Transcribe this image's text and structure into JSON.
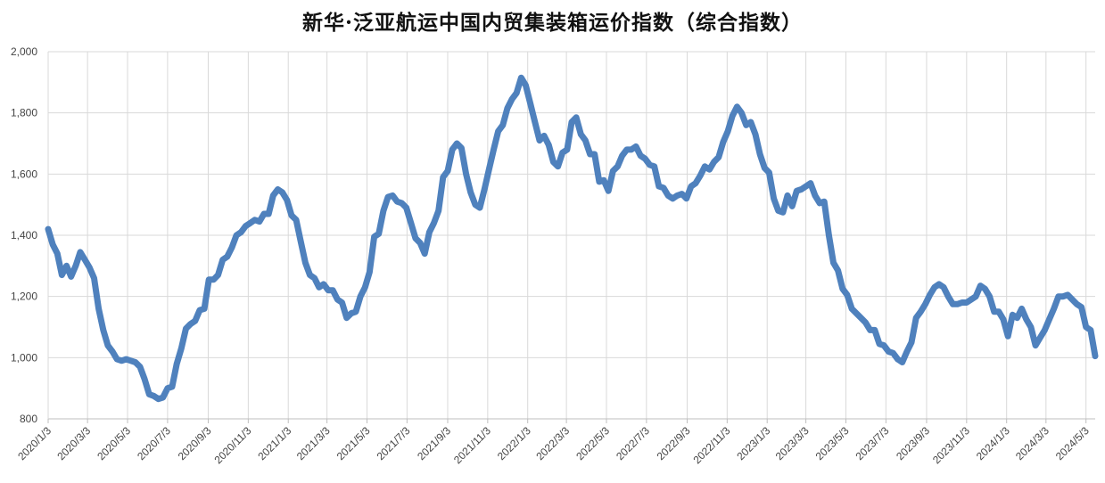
{
  "chart_data": {
    "type": "line",
    "title": "新华·泛亚航运中国内贸集装箱运价指数（综合指数）",
    "xlabel": "",
    "ylabel": "",
    "ylim": [
      800,
      2000
    ],
    "yticks": [
      800,
      1000,
      1200,
      1400,
      1600,
      1800,
      2000
    ],
    "ytick_labels": [
      "800",
      "1,000",
      "1,200",
      "1,400",
      "1,600",
      "1,800",
      "2,000"
    ],
    "xtick_labels": [
      "2020/1/3",
      "2020/3/3",
      "2020/5/3",
      "2020/7/3",
      "2020/9/3",
      "2020/11/3",
      "2021/1/3",
      "2021/3/3",
      "2021/5/3",
      "2021/7/3",
      "2021/9/3",
      "2021/11/3",
      "2022/1/3",
      "2022/3/3",
      "2022/5/3",
      "2022/7/3",
      "2022/9/3",
      "2022/11/3",
      "2023/1/3",
      "2023/3/3",
      "2023/5/3",
      "2023/7/3",
      "2023/9/3",
      "2023/11/3",
      "2024/1/3",
      "2024/3/3",
      "2024/5/3"
    ],
    "grid": true,
    "legend": "none",
    "line_color": "#4f81bd",
    "series": [
      {
        "x": [
          "2020/1/3",
          "2020/1/10",
          "2020/1/17",
          "2020/1/24",
          "2020/1/31",
          "2020/2/7",
          "2020/2/14",
          "2020/2/21",
          "2020/2/28",
          "2020/3/6",
          "2020/3/13",
          "2020/3/20",
          "2020/3/27",
          "2020/4/3",
          "2020/4/10",
          "2020/4/17",
          "2020/4/24",
          "2020/5/1",
          "2020/5/8",
          "2020/5/15",
          "2020/5/22",
          "2020/5/29",
          "2020/6/5",
          "2020/6/12",
          "2020/6/19",
          "2020/6/26",
          "2020/7/3",
          "2020/7/10",
          "2020/7/17",
          "2020/7/24",
          "2020/7/31",
          "2020/8/7",
          "2020/8/14",
          "2020/8/21",
          "2020/8/28",
          "2020/9/4",
          "2020/9/11",
          "2020/9/18",
          "2020/9/25",
          "2020/10/2",
          "2020/10/9",
          "2020/10/16",
          "2020/10/23",
          "2020/10/30",
          "2020/11/6",
          "2020/11/13",
          "2020/11/20",
          "2020/11/27",
          "2020/12/4",
          "2020/12/11",
          "2020/12/18",
          "2020/12/25",
          "2021/1/1",
          "2021/1/8",
          "2021/1/15",
          "2021/1/22",
          "2021/1/29",
          "2021/2/5",
          "2021/2/12",
          "2021/2/19",
          "2021/2/26",
          "2021/3/5",
          "2021/3/12",
          "2021/3/19",
          "2021/3/26",
          "2021/4/2",
          "2021/4/9",
          "2021/4/16",
          "2021/4/23",
          "2021/4/30",
          "2021/5/7",
          "2021/5/14",
          "2021/5/21",
          "2021/5/28",
          "2021/6/4",
          "2021/6/11",
          "2021/6/18",
          "2021/6/25",
          "2021/7/2",
          "2021/7/9",
          "2021/7/16",
          "2021/7/23",
          "2021/7/30",
          "2021/8/6",
          "2021/8/13",
          "2021/8/20",
          "2021/8/27",
          "2021/9/3",
          "2021/9/10",
          "2021/9/17",
          "2021/9/24",
          "2021/10/1",
          "2021/10/8",
          "2021/10/15",
          "2021/10/22",
          "2021/10/29",
          "2021/11/5",
          "2021/11/12",
          "2021/11/19",
          "2021/11/26",
          "2021/12/3",
          "2021/12/10",
          "2021/12/17",
          "2021/12/24",
          "2021/12/31",
          "2022/1/7",
          "2022/1/14",
          "2022/1/21",
          "2022/1/28",
          "2022/2/4",
          "2022/2/11",
          "2022/2/18",
          "2022/2/25",
          "2022/3/4",
          "2022/3/11",
          "2022/3/18",
          "2022/3/25",
          "2022/4/1",
          "2022/4/8",
          "2022/4/15",
          "2022/4/22",
          "2022/4/29",
          "2022/5/6",
          "2022/5/13",
          "2022/5/20",
          "2022/5/27",
          "2022/6/3",
          "2022/6/10",
          "2022/6/17",
          "2022/6/24",
          "2022/7/1",
          "2022/7/8",
          "2022/7/15",
          "2022/7/22",
          "2022/7/29",
          "2022/8/5",
          "2022/8/12",
          "2022/8/19",
          "2022/8/26",
          "2022/9/2",
          "2022/9/9",
          "2022/9/16",
          "2022/9/23",
          "2022/9/30",
          "2022/10/7",
          "2022/10/14",
          "2022/10/21",
          "2022/10/28",
          "2022/11/4",
          "2022/11/11",
          "2022/11/18",
          "2022/11/25",
          "2022/12/2",
          "2022/12/9",
          "2022/12/16",
          "2022/12/23",
          "2022/12/30",
          "2023/1/6",
          "2023/1/13",
          "2023/1/20",
          "2023/1/27",
          "2023/2/3",
          "2023/2/10",
          "2023/2/17",
          "2023/2/24",
          "2023/3/3",
          "2023/3/10",
          "2023/3/17",
          "2023/3/24",
          "2023/3/31",
          "2023/4/7",
          "2023/4/14",
          "2023/4/21",
          "2023/4/28",
          "2023/5/5",
          "2023/5/12",
          "2023/5/19",
          "2023/5/26",
          "2023/6/2",
          "2023/6/9",
          "2023/6/16",
          "2023/6/23",
          "2023/6/30",
          "2023/7/7",
          "2023/7/14",
          "2023/7/21",
          "2023/7/28",
          "2023/8/4",
          "2023/8/11",
          "2023/8/18",
          "2023/8/25",
          "2023/9/1",
          "2023/9/8",
          "2023/9/15",
          "2023/9/22",
          "2023/9/29",
          "2023/10/6",
          "2023/10/13",
          "2023/10/20",
          "2023/10/27",
          "2023/11/3",
          "2023/11/10",
          "2023/11/17",
          "2023/11/24",
          "2023/12/1",
          "2023/12/8",
          "2023/12/15",
          "2023/12/22",
          "2023/12/29",
          "2024/1/5",
          "2024/1/12",
          "2024/1/19",
          "2024/1/26",
          "2024/2/2",
          "2024/2/9",
          "2024/2/16",
          "2024/2/23",
          "2024/3/1",
          "2024/3/8",
          "2024/3/15",
          "2024/3/22",
          "2024/3/29",
          "2024/4/5",
          "2024/4/12",
          "2024/4/19",
          "2024/4/26",
          "2024/5/3",
          "2024/5/10",
          "2024/5/17"
        ],
        "values": [
          1420,
          1370,
          1340,
          1270,
          1300,
          1265,
          1300,
          1345,
          1320,
          1295,
          1260,
          1160,
          1090,
          1040,
          1020,
          995,
          990,
          995,
          990,
          985,
          970,
          930,
          880,
          875,
          865,
          870,
          900,
          905,
          980,
          1030,
          1095,
          1110,
          1120,
          1155,
          1160,
          1255,
          1255,
          1270,
          1320,
          1330,
          1360,
          1400,
          1410,
          1430,
          1440,
          1450,
          1445,
          1470,
          1470,
          1530,
          1550,
          1540,
          1515,
          1465,
          1450,
          1380,
          1310,
          1270,
          1260,
          1230,
          1240,
          1220,
          1220,
          1190,
          1180,
          1130,
          1145,
          1150,
          1200,
          1230,
          1280,
          1395,
          1405,
          1480,
          1525,
          1530,
          1510,
          1505,
          1490,
          1440,
          1390,
          1375,
          1340,
          1410,
          1440,
          1480,
          1590,
          1610,
          1680,
          1700,
          1685,
          1600,
          1540,
          1500,
          1490,
          1550,
          1615,
          1680,
          1740,
          1760,
          1815,
          1845,
          1865,
          1915,
          1890,
          1830,
          1770,
          1710,
          1725,
          1695,
          1640,
          1625,
          1670,
          1680,
          1770,
          1785,
          1730,
          1710,
          1665,
          1665,
          1575,
          1580,
          1545,
          1610,
          1625,
          1660,
          1680,
          1680,
          1690,
          1660,
          1650,
          1630,
          1625,
          1560,
          1555,
          1530,
          1520,
          1530,
          1535,
          1520,
          1560,
          1570,
          1595,
          1625,
          1615,
          1640,
          1655,
          1705,
          1740,
          1790,
          1820,
          1800,
          1760,
          1770,
          1730,
          1665,
          1620,
          1605,
          1520,
          1480,
          1475,
          1530,
          1495,
          1545,
          1550,
          1560,
          1570,
          1530,
          1505,
          1510,
          1400,
          1310,
          1285,
          1225,
          1205,
          1160,
          1145,
          1130,
          1115,
          1090,
          1090,
          1045,
          1040,
          1020,
          1015,
          995,
          985,
          1020,
          1050,
          1130,
          1150,
          1175,
          1205,
          1230,
          1240,
          1230,
          1200,
          1175,
          1175,
          1180,
          1180,
          1190,
          1200,
          1235,
          1225,
          1200,
          1150,
          1150,
          1125,
          1070,
          1140,
          1130,
          1160,
          1125,
          1100,
          1040,
          1065,
          1090,
          1125,
          1160,
          1200,
          1200,
          1205,
          1190,
          1175,
          1165,
          1100,
          1090,
          1005
        ]
      }
    ]
  }
}
